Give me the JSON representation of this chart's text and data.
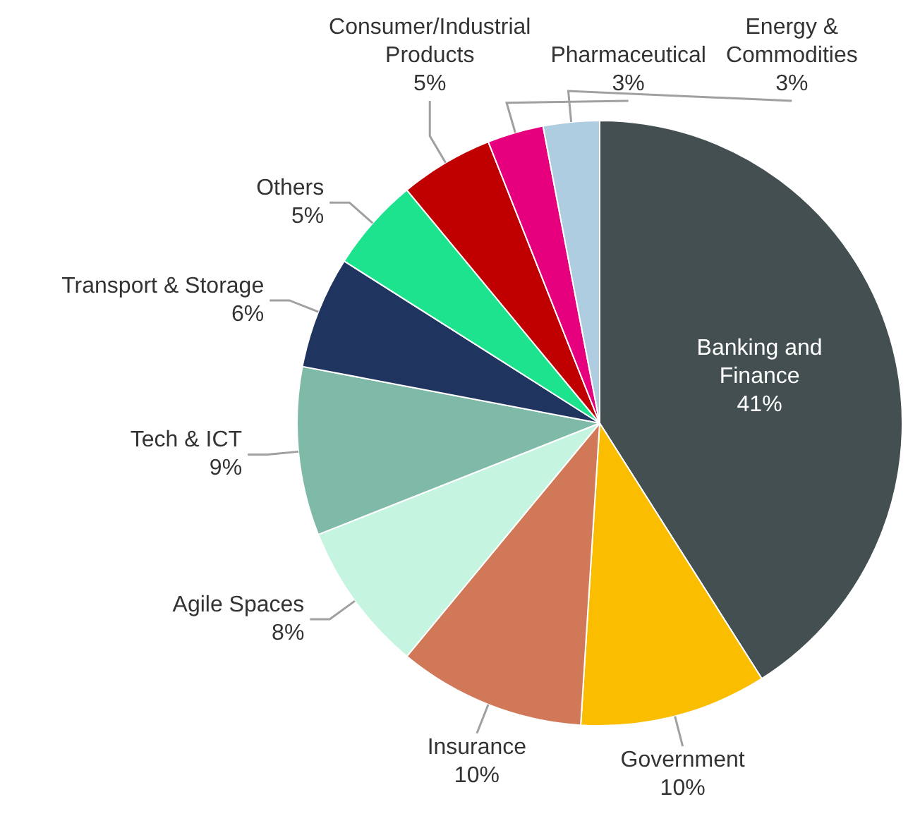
{
  "chart_data": {
    "type": "pie",
    "categories": [
      "Banking and Finance",
      "Government",
      "Insurance",
      "Agile Spaces",
      "Tech & ICT",
      "Transport & Storage",
      "Others",
      "Consumer/Industrial Products",
      "Pharmaceutical",
      "Energy & Commodities"
    ],
    "values": [
      41,
      10,
      10,
      8,
      9,
      6,
      5,
      5,
      3,
      3
    ],
    "colors": [
      "#434f51",
      "#fbbd00",
      "#d07858",
      "#c5f5e0",
      "#7fb9a8",
      "#1f3560",
      "#1de38f",
      "#c00000",
      "#e6007e",
      "#aecde0"
    ],
    "value_labels": [
      "41%",
      "10%",
      "10%",
      "8%",
      "9%",
      "6%",
      "5%",
      "5%",
      "3%",
      "3%"
    ],
    "legend": false
  }
}
